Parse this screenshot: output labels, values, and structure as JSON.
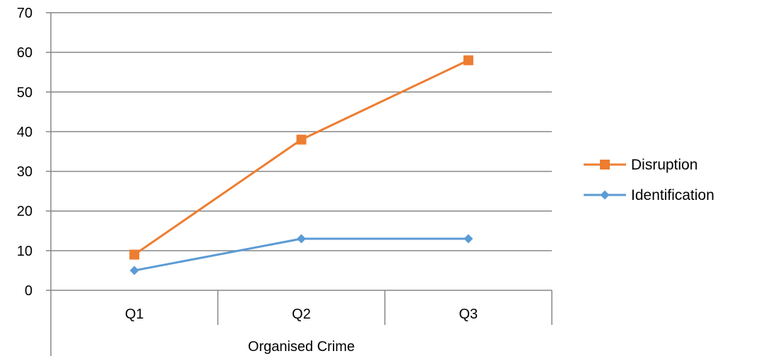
{
  "chart_data": {
    "type": "line",
    "title": "",
    "xlabel": "",
    "ylabel": "",
    "group_label": "Organised Crime",
    "categories": [
      "Q1",
      "Q2",
      "Q3"
    ],
    "ylim": [
      0,
      70
    ],
    "yticks": [
      "0",
      "10",
      "20",
      "30",
      "40",
      "50",
      "60",
      "70"
    ],
    "grid": true,
    "legend_position": "right",
    "series": [
      {
        "name": "Disruption",
        "values": [
          9,
          38,
          58
        ],
        "color": "#ED7D31",
        "marker": "square"
      },
      {
        "name": "Identification",
        "values": [
          5,
          13,
          13
        ],
        "color": "#5B9BD5",
        "marker": "diamond"
      }
    ]
  }
}
